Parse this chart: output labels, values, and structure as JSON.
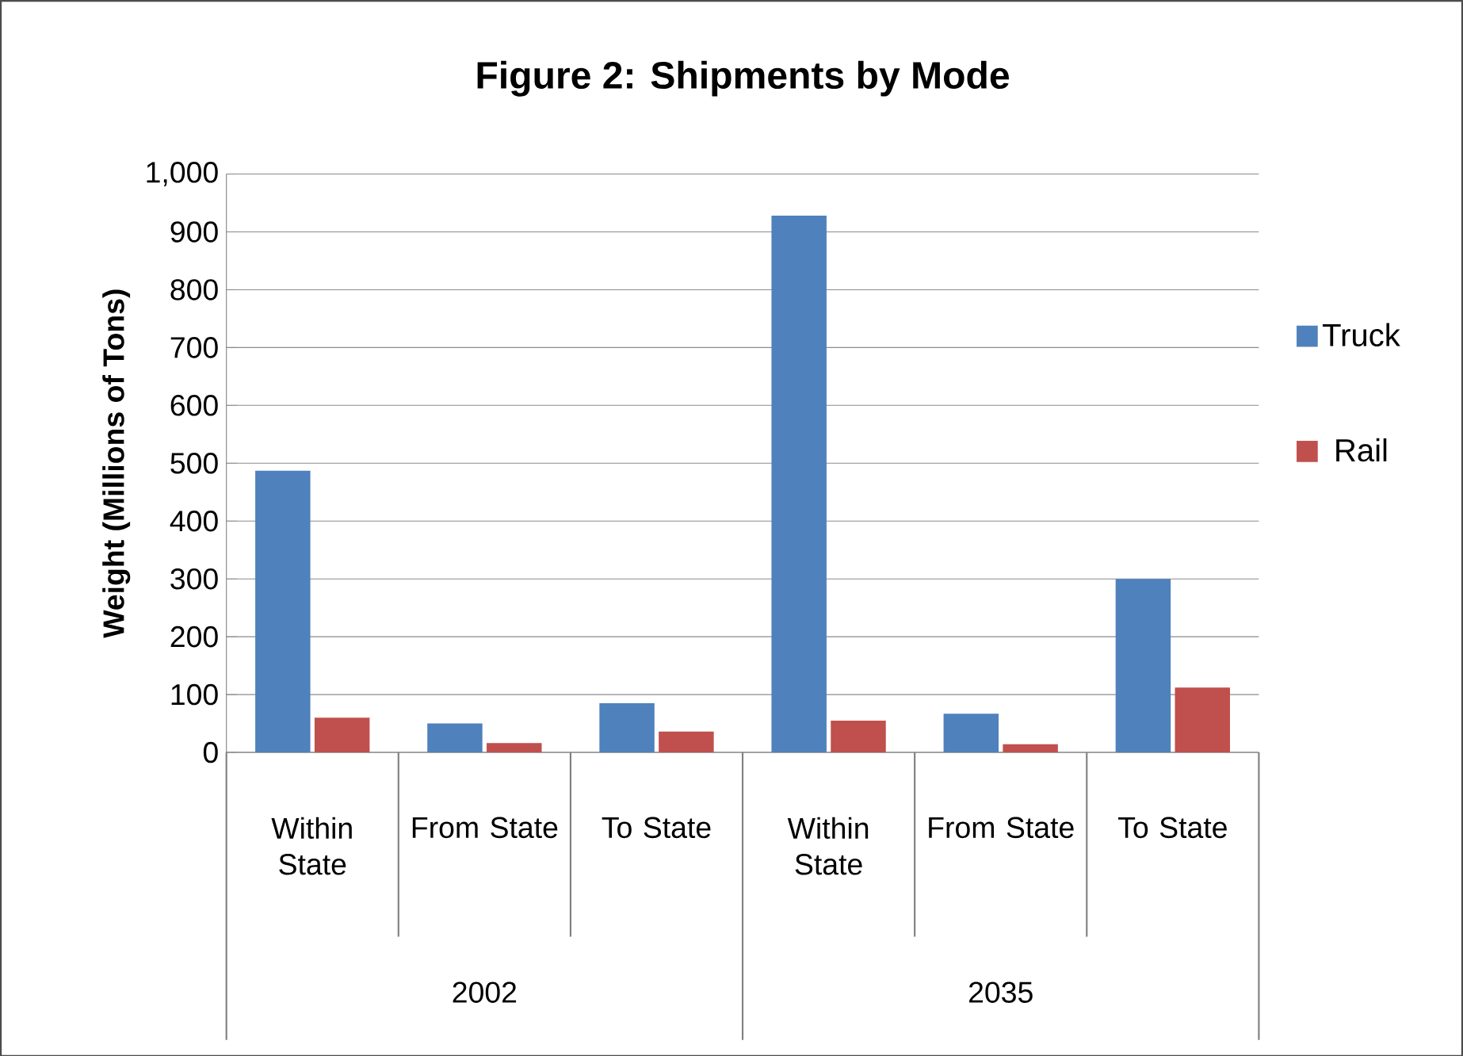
{
  "chart_data": {
    "type": "bar",
    "title": "Figure 2: Shipments by Mode",
    "ylabel": "Weight (Millions of Tons)",
    "categories": [
      "Within State",
      "From State",
      "To State",
      "Within State",
      "From State",
      "To State"
    ],
    "annotations": [
      "2002",
      "2035"
    ],
    "series": [
      {
        "name": "Truck",
        "color": "#4f81bd",
        "values": [
          487,
          50,
          85,
          928,
          67,
          300
        ]
      },
      {
        "name": "Rail",
        "color": "#c0504d",
        "values": [
          60,
          16,
          36,
          55,
          14,
          112
        ]
      }
    ],
    "ylim": [
      0,
      1000
    ],
    "yticks": [
      0,
      100,
      200,
      300,
      400,
      500,
      600,
      700,
      800,
      900,
      {
        "value": 1000,
        "label": "1,000"
      }
    ],
    "grid": "y",
    "legend": "right"
  }
}
